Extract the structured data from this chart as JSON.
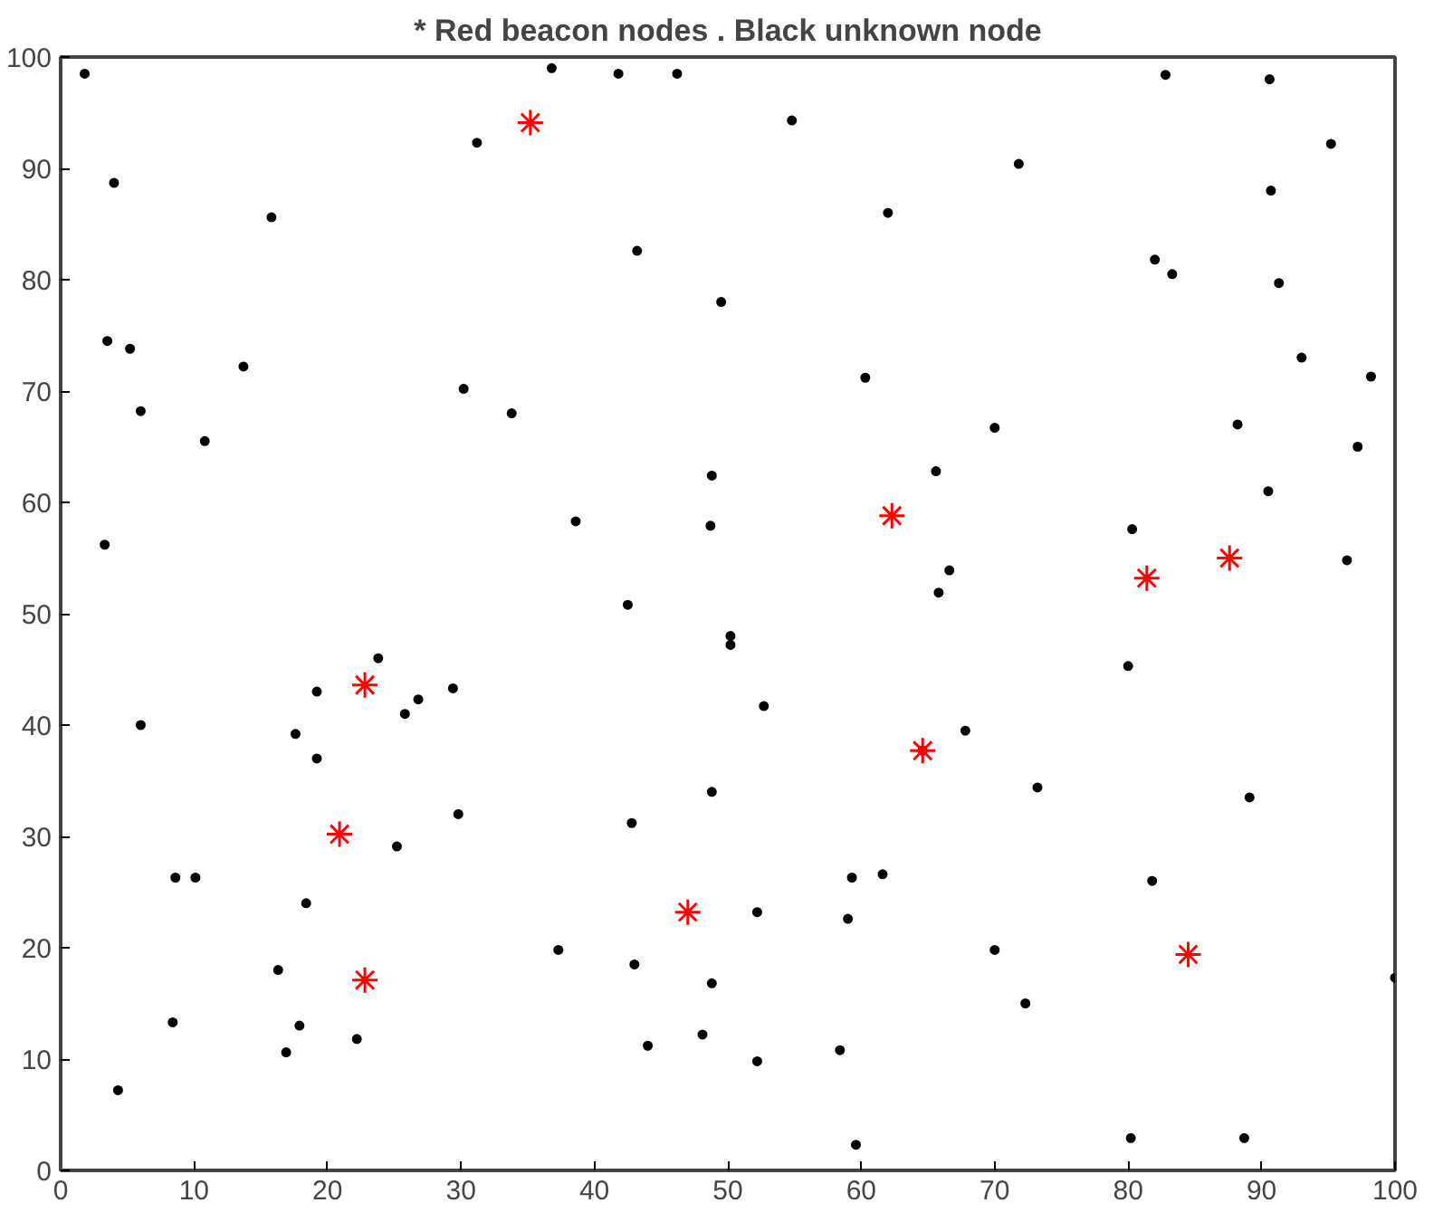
{
  "chart_data": {
    "type": "scatter",
    "title": "* Red beacon nodes . Black unknown node",
    "xlim": [
      0,
      100
    ],
    "ylim": [
      0,
      100
    ],
    "xticks": [
      0,
      10,
      20,
      30,
      40,
      50,
      60,
      70,
      80,
      90,
      100
    ],
    "yticks": [
      0,
      10,
      20,
      30,
      40,
      50,
      60,
      70,
      80,
      90,
      100
    ],
    "grid": false,
    "series": [
      {
        "color": "#000000",
        "marker": "circle",
        "x": [
          1.8,
          3.5,
          5.2,
          6,
          4,
          3.3,
          15.8,
          13.7,
          10.8,
          31.2,
          36.8,
          41.8,
          46.2,
          54.8,
          43.2,
          49.5,
          30.2,
          33.8,
          38.6,
          48.8,
          48.7,
          42.5,
          50.2,
          50.2,
          60.3,
          62,
          71.8,
          82.8,
          90.6,
          95.2,
          90.7,
          82,
          83.3,
          91.3,
          93,
          98.2,
          70,
          65.6,
          88.2,
          97.2,
          90.5,
          80.3,
          96.4,
          66.6,
          65.8,
          80,
          52.7,
          67.8,
          73.2,
          89.1,
          64.6,
          6,
          19.2,
          23.8,
          26.8,
          29.4,
          25.8,
          17.6,
          19.2,
          29.8,
          25.2,
          48.8,
          42.8,
          8.6,
          10.1,
          18.4,
          16.3,
          17.9,
          8.4,
          16.9,
          22.2,
          4.3,
          37.3,
          43,
          44,
          48.1,
          48.8,
          52.2,
          52.2,
          59.3,
          61.6,
          59,
          58.4,
          59.6,
          70,
          72.3,
          81.8,
          80.2,
          88.7,
          100
        ],
        "values": [
          98.5,
          74.5,
          73.8,
          68.2,
          88.7,
          56.2,
          85.6,
          72.2,
          65.5,
          92.3,
          99,
          98.5,
          98.5,
          94.3,
          82.6,
          78,
          70.2,
          68,
          58.3,
          62.4,
          57.9,
          50.8,
          48,
          47.2,
          71.2,
          86,
          90.4,
          98.4,
          98,
          92.2,
          88,
          81.8,
          80.5,
          79.7,
          73,
          71.3,
          66.7,
          62.8,
          67,
          65,
          61,
          57.6,
          54.8,
          53.9,
          51.9,
          45.3,
          41.7,
          39.5,
          34.4,
          33.5,
          37.7,
          40,
          43,
          46,
          42.3,
          43.3,
          41,
          39.2,
          37,
          32,
          29.1,
          34,
          31.2,
          26.3,
          26.3,
          24,
          18,
          13,
          13.3,
          10.6,
          11.8,
          7.2,
          19.8,
          18.5,
          11.2,
          12.2,
          16.8,
          23.2,
          9.8,
          26.3,
          26.6,
          22.6,
          10.8,
          2.3,
          19.8,
          15,
          26,
          2.9,
          2.9,
          17.3
        ]
      },
      {
        "color": "#ff0000",
        "marker": "cross",
        "x": [
          35.2,
          62.3,
          81.4,
          87.6,
          22.8,
          20.9,
          22.8,
          47,
          64.6,
          84.5
        ],
        "values": [
          94.1,
          58.8,
          53.2,
          55,
          43.6,
          30.2,
          17.1,
          23.2,
          37.7,
          19.4
        ]
      }
    ]
  }
}
